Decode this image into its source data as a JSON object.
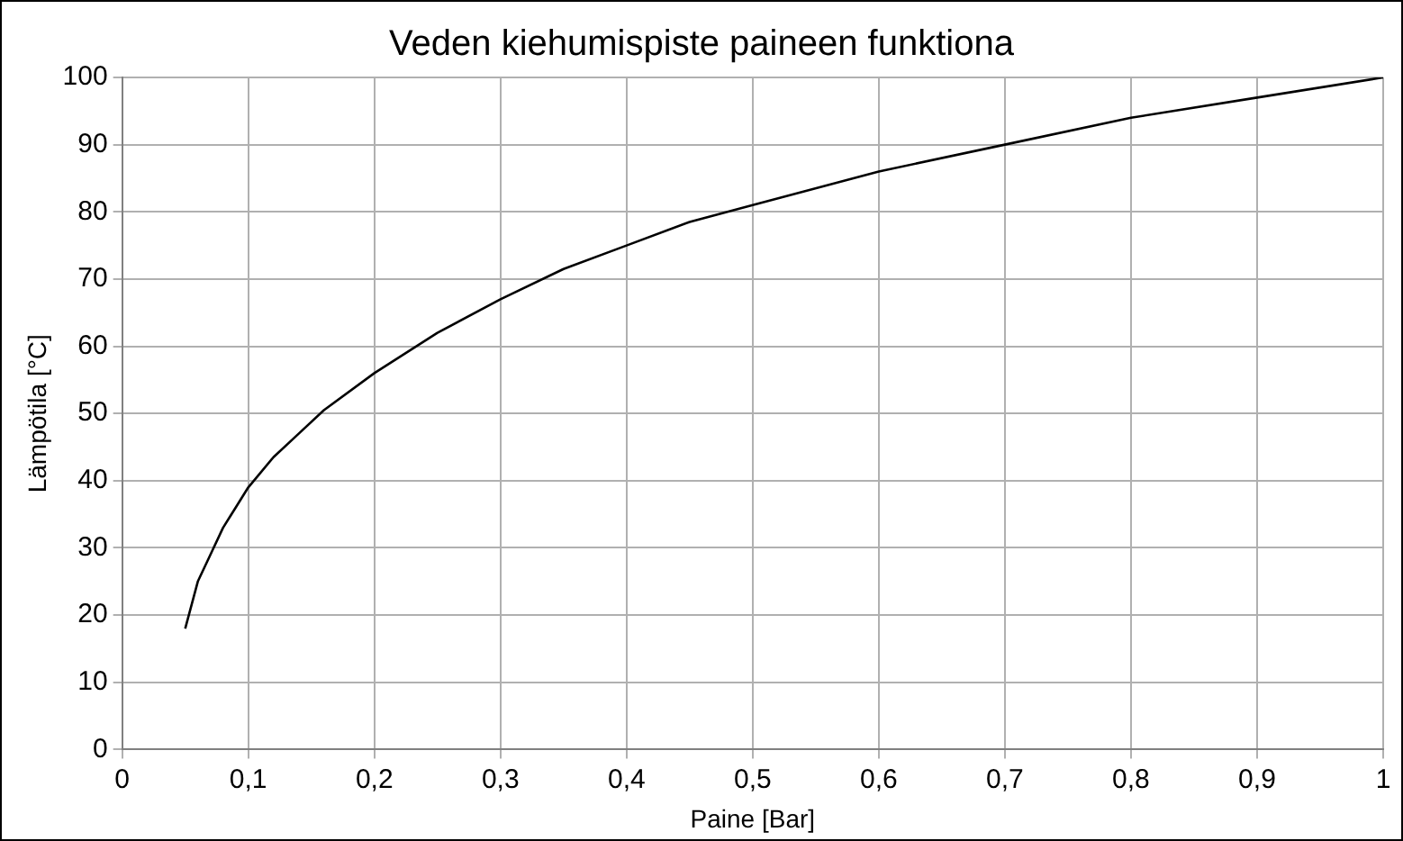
{
  "chart_data": {
    "type": "line",
    "title": "Veden kiehumispiste paineen funktiona",
    "xlabel": "Paine [Bar]",
    "ylabel": "Lämpötila [°C]",
    "x": [
      0.05,
      0.06,
      0.07,
      0.08,
      0.09,
      0.1,
      0.12,
      0.14,
      0.16,
      0.2,
      0.25,
      0.3,
      0.35,
      0.4,
      0.45,
      0.5,
      0.6,
      0.7,
      0.8,
      0.9,
      1.0
    ],
    "series": [
      {
        "color": "#000000",
        "values": [
          18,
          25,
          29,
          33,
          36,
          39,
          43.5,
          47,
          50.5,
          56,
          62,
          67,
          71.5,
          75,
          78.5,
          81,
          86,
          90,
          94,
          97,
          100
        ]
      }
    ],
    "xlim": [
      0,
      1
    ],
    "ylim": [
      0,
      100
    ],
    "xticks": [
      0,
      {
        "value": 0.1,
        "label": "0,1"
      },
      {
        "value": 0.2,
        "label": "0,2"
      },
      {
        "value": 0.3,
        "label": "0,3"
      },
      {
        "value": 0.4,
        "label": "0,4"
      },
      {
        "value": 0.5,
        "label": "0,5"
      },
      {
        "value": 0.6,
        "label": "0,6"
      },
      {
        "value": 0.7,
        "label": "0,7"
      },
      {
        "value": 0.8,
        "label": "0,8"
      },
      {
        "value": 0.9,
        "label": "0,9"
      },
      1
    ],
    "yticks": [
      0,
      10,
      20,
      30,
      40,
      50,
      60,
      70,
      80,
      90,
      100
    ],
    "grid": true,
    "legend": false,
    "marker": "none",
    "line_style": "solid"
  }
}
